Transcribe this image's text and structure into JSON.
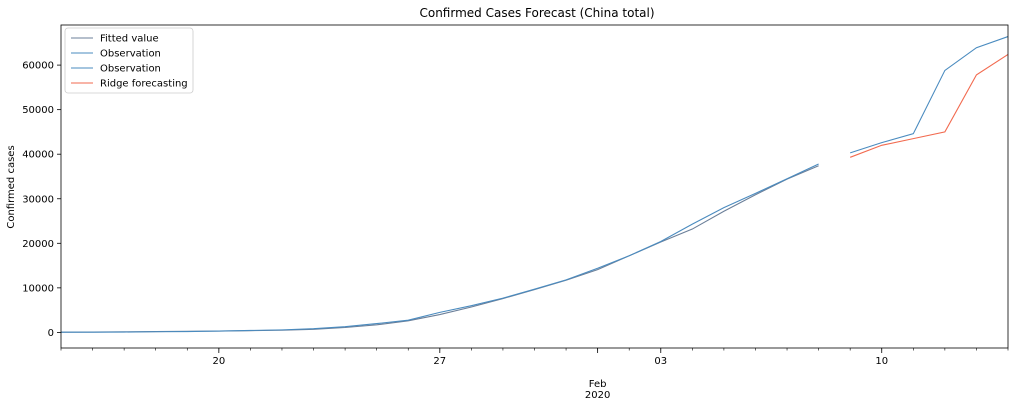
{
  "chart_data": {
    "type": "line",
    "title": "Confirmed Cases Forecast (China total)",
    "xlabel": "",
    "ylabel": "Confirmed cases",
    "x_axis_type": "date",
    "xlim": [
      "2020-01-15",
      "2020-02-14"
    ],
    "ylim": [
      -3500,
      69000
    ],
    "yticks": [
      0,
      10000,
      20000,
      30000,
      40000,
      50000,
      60000
    ],
    "xticks": [
      {
        "date": "2020-01-20",
        "label": "20"
      },
      {
        "date": "2020-01-27",
        "label": "27"
      },
      {
        "date": "2020-02-03",
        "label": "03"
      },
      {
        "date": "2020-02-10",
        "label": "10"
      }
    ],
    "x_month_label": {
      "date": "2020-02-01",
      "line1": "Feb",
      "line2": "2020"
    },
    "grid": false,
    "legend_position": "top-left",
    "series": [
      {
        "name": "Fitted value",
        "color": "#6b7f99",
        "points": [
          [
            "2020-01-15",
            50
          ],
          [
            "2020-01-16",
            80
          ],
          [
            "2020-01-17",
            130
          ],
          [
            "2020-01-18",
            200
          ],
          [
            "2020-01-19",
            260
          ],
          [
            "2020-01-20",
            310
          ],
          [
            "2020-01-21",
            390
          ],
          [
            "2020-01-22",
            500
          ],
          [
            "2020-01-23",
            700
          ],
          [
            "2020-01-24",
            1100
          ],
          [
            "2020-01-25",
            1700
          ],
          [
            "2020-01-26",
            2600
          ],
          [
            "2020-01-27",
            4000
          ],
          [
            "2020-01-28",
            5700
          ],
          [
            "2020-01-29",
            7600
          ],
          [
            "2020-01-30",
            9600
          ],
          [
            "2020-01-31",
            11700
          ],
          [
            "2020-02-01",
            14100
          ],
          [
            "2020-02-02",
            17200
          ],
          [
            "2020-02-03",
            20300
          ],
          [
            "2020-02-04",
            23200
          ],
          [
            "2020-02-05",
            27200
          ],
          [
            "2020-02-06",
            30900
          ],
          [
            "2020-02-07",
            34400
          ],
          [
            "2020-02-08",
            37400
          ]
        ]
      },
      {
        "name": "Observation",
        "color": "#4a8bbf",
        "points": [
          [
            "2020-01-15",
            40
          ],
          [
            "2020-01-16",
            60
          ],
          [
            "2020-01-17",
            80
          ],
          [
            "2020-01-18",
            150
          ],
          [
            "2020-01-19",
            200
          ],
          [
            "2020-01-20",
            290
          ],
          [
            "2020-01-21",
            440
          ],
          [
            "2020-01-22",
            570
          ],
          [
            "2020-01-23",
            830
          ],
          [
            "2020-01-24",
            1290
          ],
          [
            "2020-01-25",
            1980
          ],
          [
            "2020-01-26",
            2740
          ],
          [
            "2020-01-27",
            4500
          ],
          [
            "2020-01-28",
            6000
          ],
          [
            "2020-01-29",
            7700
          ],
          [
            "2020-01-30",
            9700
          ],
          [
            "2020-01-31",
            11800
          ],
          [
            "2020-02-01",
            14400
          ],
          [
            "2020-02-02",
            17200
          ],
          [
            "2020-02-03",
            20400
          ],
          [
            "2020-02-04",
            24300
          ],
          [
            "2020-02-05",
            28000
          ],
          [
            "2020-02-06",
            31200
          ],
          [
            "2020-02-07",
            34500
          ],
          [
            "2020-02-08",
            37800
          ]
        ]
      },
      {
        "name": "Observation",
        "color": "#4a8bbf",
        "points": [
          [
            "2020-02-09",
            40300
          ],
          [
            "2020-02-10",
            42600
          ],
          [
            "2020-02-11",
            44600
          ],
          [
            "2020-02-12",
            58800
          ],
          [
            "2020-02-13",
            63900
          ],
          [
            "2020-02-14",
            66400
          ]
        ]
      },
      {
        "name": "Ridge forecasting",
        "color": "#f26a4f",
        "points": [
          [
            "2020-02-09",
            39300
          ],
          [
            "2020-02-10",
            42000
          ],
          [
            "2020-02-11",
            43500
          ],
          [
            "2020-02-12",
            45000
          ],
          [
            "2020-02-13",
            57800
          ],
          [
            "2020-02-14",
            62400
          ]
        ]
      }
    ]
  }
}
